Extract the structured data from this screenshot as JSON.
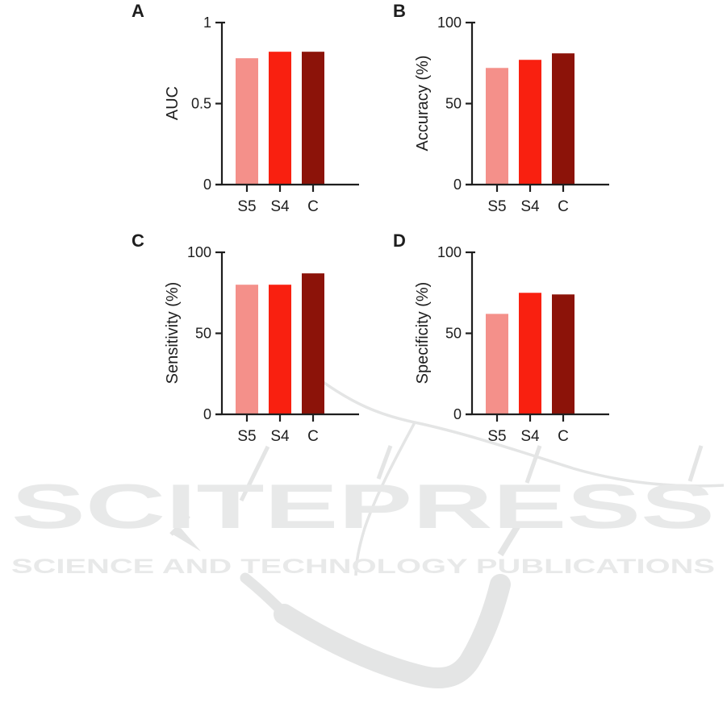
{
  "watermark": {
    "brand": "SCITEPRESS",
    "tagline": "SCIENCE AND TECHNOLOGY PUBLICATIONS"
  },
  "colors": {
    "bars": [
      "#F4908A",
      "#F92010",
      "#8C1309"
    ],
    "axis": "#1E1E1E",
    "watermark_light": "#E8E9E9",
    "watermark_mid": "#E4E5E5"
  },
  "chart_data": [
    {
      "panel_label": "A",
      "type": "bar",
      "title": "",
      "xlabel": "",
      "ylabel": "AUC",
      "categories": [
        "S5",
        "S4",
        "C"
      ],
      "values": [
        0.78,
        0.82,
        0.82
      ],
      "ylim": [
        0,
        1
      ],
      "yticks": [
        {
          "value": 0,
          "label": "0"
        },
        {
          "value": 0.5,
          "label": "0.5"
        },
        {
          "value": 1,
          "label": "1"
        }
      ],
      "grid": false,
      "legend": "none"
    },
    {
      "panel_label": "B",
      "type": "bar",
      "title": "",
      "xlabel": "",
      "ylabel": "Accuracy (%)",
      "categories": [
        "S5",
        "S4",
        "C"
      ],
      "values": [
        72,
        77,
        81
      ],
      "ylim": [
        0,
        100
      ],
      "yticks": [
        {
          "value": 0,
          "label": "0"
        },
        {
          "value": 50,
          "label": "50"
        },
        {
          "value": 100,
          "label": "100"
        }
      ],
      "grid": false,
      "legend": "none"
    },
    {
      "panel_label": "C",
      "type": "bar",
      "title": "",
      "xlabel": "",
      "ylabel": "Sensitivity (%)",
      "categories": [
        "S5",
        "S4",
        "C"
      ],
      "values": [
        80,
        80,
        87
      ],
      "ylim": [
        0,
        100
      ],
      "yticks": [
        {
          "value": 0,
          "label": "0"
        },
        {
          "value": 50,
          "label": "50"
        },
        {
          "value": 100,
          "label": "100"
        }
      ],
      "grid": false,
      "legend": "none"
    },
    {
      "panel_label": "D",
      "type": "bar",
      "title": "",
      "xlabel": "",
      "ylabel": "Specificity (%)",
      "categories": [
        "S5",
        "S4",
        "C"
      ],
      "values": [
        62,
        75,
        74
      ],
      "ylim": [
        0,
        100
      ],
      "yticks": [
        {
          "value": 0,
          "label": "0"
        },
        {
          "value": 50,
          "label": "50"
        },
        {
          "value": 100,
          "label": "100"
        }
      ],
      "grid": false,
      "legend": "none"
    }
  ]
}
